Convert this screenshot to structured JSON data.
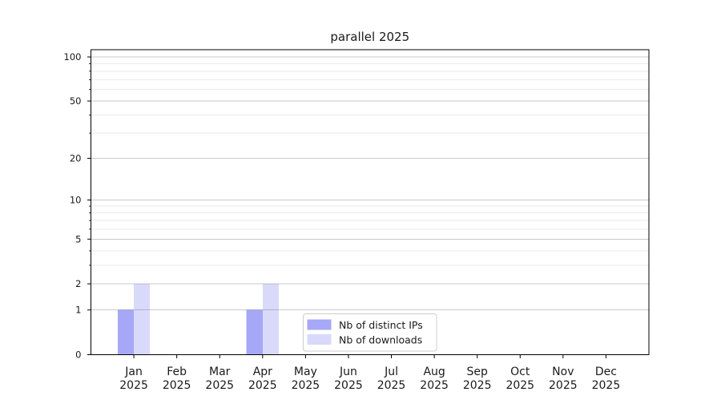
{
  "figure": {
    "background": "#ffffff"
  },
  "chart_data": {
    "type": "bar",
    "title": "parallel 2025",
    "categories": [
      "Jan",
      "Feb",
      "Mar",
      "Apr",
      "May",
      "Jun",
      "Jul",
      "Aug",
      "Sep",
      "Oct",
      "Nov",
      "Dec"
    ],
    "category_year": "2025",
    "series": [
      {
        "name": "Nb of distinct IPs",
        "values": [
          1,
          0,
          0,
          1,
          0,
          0,
          0,
          0,
          0,
          0,
          0,
          0
        ],
        "color": "#a7a8f7",
        "fill": "rgba(79,80,239,0.5)"
      },
      {
        "name": "Nb of downloads",
        "values": [
          2,
          0,
          0,
          2,
          0,
          0,
          0,
          0,
          0,
          0,
          0,
          0
        ],
        "color": "#d9d9fa",
        "fill": "rgba(103,103,235,0.25)"
      }
    ],
    "xlabel": "",
    "ylabel": "",
    "yscale": "log1p",
    "ylim": [
      0,
      112
    ],
    "yticks": [
      0,
      1,
      2,
      5,
      10,
      20,
      50,
      100
    ],
    "yticks_minor": [
      3,
      4,
      6,
      7,
      8,
      9,
      30,
      40,
      60,
      70,
      80,
      90
    ],
    "grid": true,
    "legend": {
      "position": "lower center"
    }
  },
  "colors": {
    "grid_major": "#c9c9c9",
    "grid_minor": "#eaeaea",
    "axis": "#000000",
    "text": "#1a1a1a",
    "legend_border": "#cccccc",
    "legend_background": "#ffffff"
  }
}
